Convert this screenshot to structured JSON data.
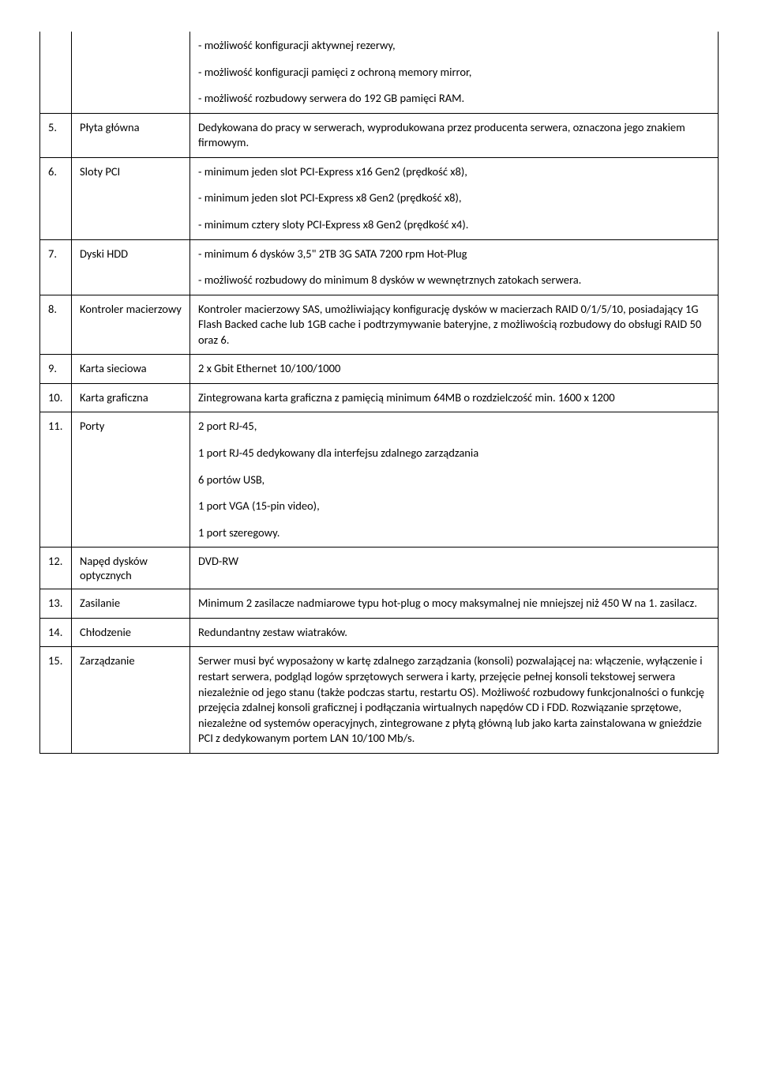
{
  "table": {
    "column_widths": {
      "num": 40,
      "name": 150
    },
    "border_color": "#000000",
    "background_color": "#ffffff",
    "text_color": "#000000",
    "font_family": "Calibri",
    "font_size_pt": 11
  },
  "rows": [
    {
      "num": "",
      "name": "",
      "continuation": true,
      "paras": [
        "- możliwość konfiguracji aktywnej rezerwy,",
        "- możliwość konfiguracji pamięci z ochroną memory mirror,",
        "- możliwość rozbudowy serwera do 192 GB pamięci RAM."
      ]
    },
    {
      "num": "5.",
      "name": "Płyta główna",
      "paras": [
        "Dedykowana do pracy w serwerach, wyprodukowana przez producenta serwera, oznaczona jego znakiem firmowym."
      ]
    },
    {
      "num": "6.",
      "name": "Sloty PCI",
      "paras": [
        "- minimum jeden slot PCI-Express x16 Gen2 (prędkość x8),",
        "- minimum jeden slot PCI-Express x8 Gen2 (prędkość  x8),",
        "- minimum cztery sloty PCI-Express x8 Gen2 (prędkość x4)."
      ]
    },
    {
      "num": "7.",
      "name": "Dyski HDD",
      "paras": [
        "- minimum 6 dysków 3,5\" 2TB 3G SATA 7200 rpm Hot-Plug",
        "- możliwość rozbudowy do minimum 8 dysków w wewnętrznych zatokach serwera."
      ]
    },
    {
      "num": "8.",
      "name": "Kontroler macierzowy",
      "paras": [
        "Kontroler macierzowy SAS, umożliwiający konfigurację dysków w macierzach RAID 0/1/5/10, posiadający 1G Flash Backed cache lub 1GB cache i podtrzymywanie bateryjne, z możliwością rozbudowy do obsługi RAID 50 oraz 6."
      ]
    },
    {
      "num": "9.",
      "name": "Karta sieciowa",
      "paras": [
        "2 x Gbit Ethernet 10/100/1000"
      ]
    },
    {
      "num": "10.",
      "name": "Karta graficzna",
      "paras": [
        "Zintegrowana karta graficzna z pamięcią minimum 64MB o rozdzielczość min. 1600 x 1200"
      ]
    },
    {
      "num": "11.",
      "name": "Porty",
      "paras": [
        "2 port RJ-45,",
        "1 port RJ-45 dedykowany dla interfejsu zdalnego zarządzania",
        "6 portów USB,",
        "1 port VGA (15-pin video),",
        "1 port szeregowy."
      ]
    },
    {
      "num": "12.",
      "name": "Napęd dysków optycznych",
      "paras": [
        "DVD-RW"
      ]
    },
    {
      "num": "13.",
      "name": "Zasilanie",
      "paras": [
        "Minimum 2 zasilacze nadmiarowe typu hot-plug o mocy maksymalnej nie mniejszej niż 450 W na 1. zasilacz."
      ]
    },
    {
      "num": "14.",
      "name": "Chłodzenie",
      "paras": [
        "Redundantny zestaw wiatraków."
      ]
    },
    {
      "num": "15.",
      "name": "Zarządzanie",
      "paras": [
        "Serwer musi być wyposażony w kartę zdalnego zarządzania (konsoli) pozwalającej na: włączenie, wyłączenie i restart serwera, podgląd logów sprzętowych serwera i karty, przejęcie pełnej konsoli tekstowej serwera niezależnie od jego stanu (także podczas startu, restartu OS). Możliwość rozbudowy funkcjonalności o funkcję przejęcia zdalnej konsoli graficznej i podłączania wirtualnych napędów CD i FDD. Rozwiązanie sprzętowe, niezależne od systemów operacyjnych, zintegrowane z płytą główną lub jako karta zainstalowana w gnieździe PCI z dedykowanym portem LAN 10/100 Mb/s."
      ]
    }
  ]
}
